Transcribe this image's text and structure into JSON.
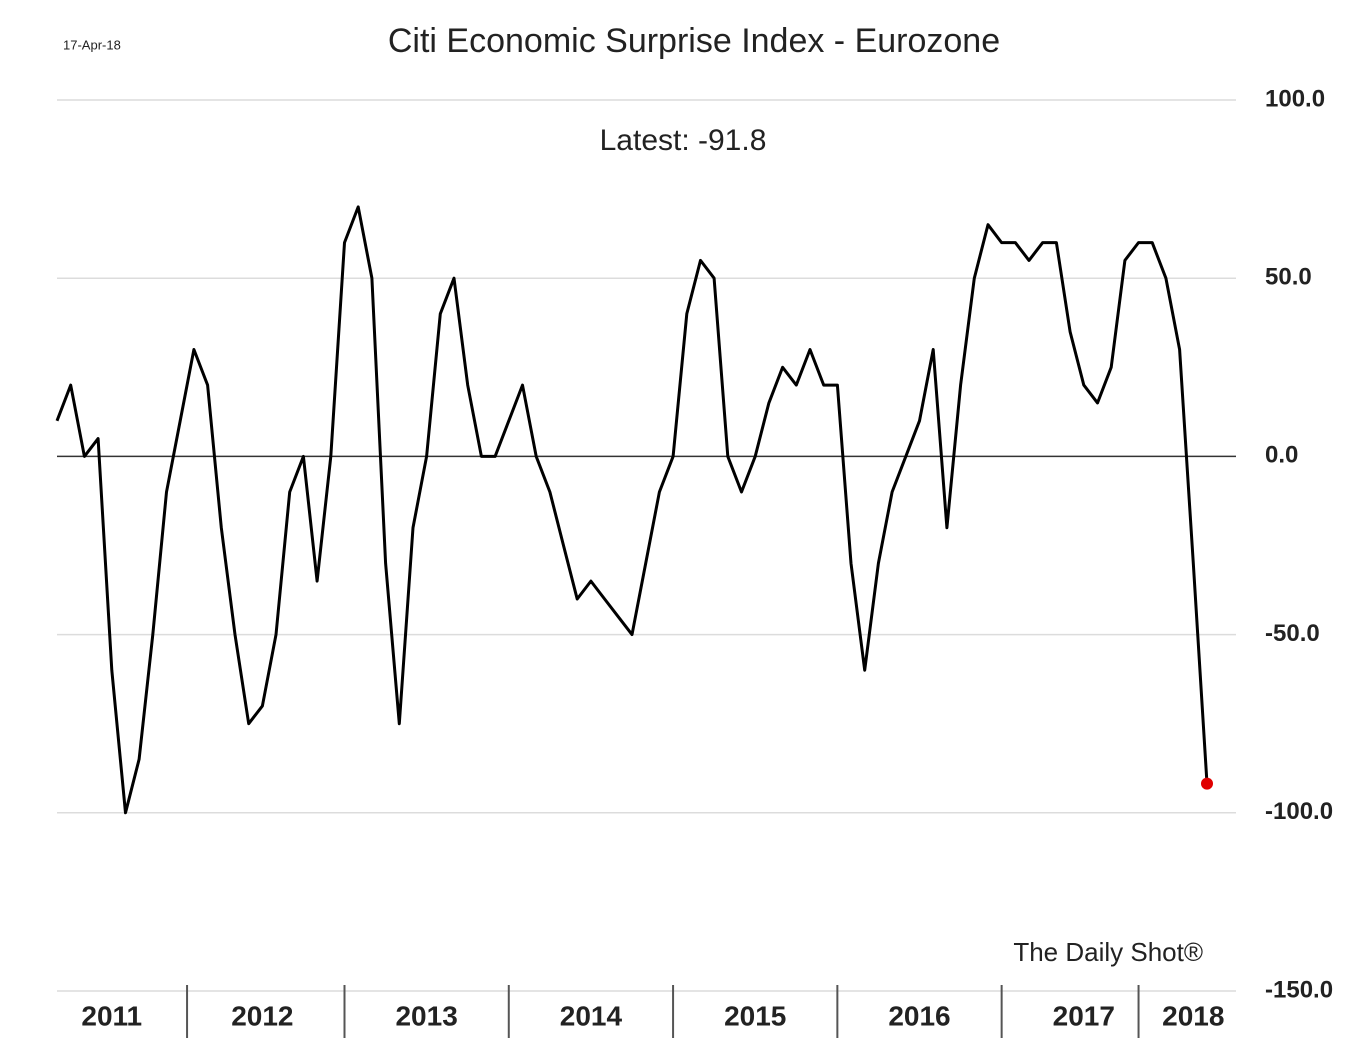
{
  "chart_data": {
    "type": "line",
    "title": "Citi Economic Surprise Index - Eurozone",
    "date": "17-Apr-18",
    "annotation": "Latest:  -91.8",
    "source": "The Daily Shot®",
    "categories": [
      null,
      null,
      null,
      null,
      "2011",
      null,
      null,
      null,
      null,
      null,
      null,
      null,
      null,
      null,
      null,
      "2012",
      null,
      null,
      null,
      null,
      null,
      null,
      null,
      null,
      null,
      null,
      null,
      "2013",
      null,
      null,
      null,
      null,
      null,
      null,
      null,
      null,
      null,
      null,
      null,
      "2014",
      null,
      null,
      null,
      null,
      null,
      null,
      null,
      null,
      null,
      null,
      null,
      "2015",
      null,
      null,
      null,
      null,
      null,
      null,
      null,
      null,
      null,
      null,
      null,
      "2016",
      null,
      null,
      null,
      null,
      null,
      null,
      null,
      null,
      null,
      null,
      null,
      "2017",
      null,
      null,
      null,
      null,
      null,
      null,
      null,
      "2018",
      null
    ],
    "series": [
      {
        "name": "Citi Economic Surprise Index - Eurozone",
        "color": "#000000",
        "values": [
          10,
          20,
          0,
          5,
          -60,
          -100,
          -85,
          -50,
          -10,
          10,
          30,
          20,
          -20,
          -50,
          -75,
          -70,
          -50,
          -10,
          0,
          -35,
          0,
          60,
          70,
          50,
          -30,
          -75,
          -20,
          0,
          40,
          50,
          20,
          0,
          0,
          10,
          20,
          0,
          -10,
          -25,
          -40,
          -35,
          -40,
          -45,
          -50,
          -30,
          -10,
          0,
          40,
          55,
          50,
          0,
          -10,
          0,
          15,
          25,
          20,
          30,
          20,
          20,
          -30,
          -60,
          -30,
          -10,
          0,
          10,
          30,
          -20,
          20,
          50,
          65,
          60,
          60,
          55,
          60,
          60,
          35,
          20,
          15,
          25,
          55,
          60,
          60,
          50,
          30,
          -30,
          -91.8
        ]
      }
    ],
    "latest_color": "#e00000",
    "ylim": [
      -150,
      100
    ],
    "yticks": [
      {
        "value": -150,
        "label": "-150.0"
      },
      {
        "value": -100,
        "label": "-100.0"
      },
      {
        "value": -50,
        "label": "-50.0"
      },
      {
        "value": 0,
        "label": "0.0"
      },
      {
        "value": 50,
        "label": "50.0"
      },
      {
        "value": 100,
        "label": "100.0"
      }
    ],
    "grid": true
  }
}
